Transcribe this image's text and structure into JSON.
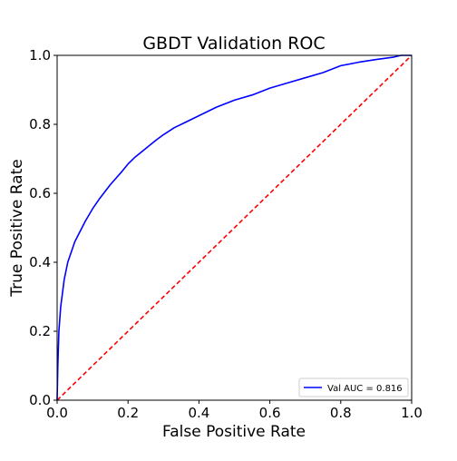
{
  "chart_data": {
    "type": "line",
    "title": "GBDT Validation ROC",
    "xlabel": "False Positive Rate",
    "ylabel": "True Positive Rate",
    "xlim": [
      0.0,
      1.0
    ],
    "ylim": [
      0.0,
      1.0
    ],
    "xticks": [
      "0.0",
      "0.2",
      "0.4",
      "0.6",
      "0.8",
      "1.0"
    ],
    "yticks": [
      "0.0",
      "0.2",
      "0.4",
      "0.6",
      "0.8",
      "1.0"
    ],
    "grid": false,
    "legend_position": "lower-right",
    "series": [
      {
        "name": "Val AUC = 0.816",
        "color": "#0000ff",
        "style": "solid",
        "x": [
          0.0,
          0.002,
          0.005,
          0.01,
          0.015,
          0.02,
          0.03,
          0.04,
          0.05,
          0.06,
          0.08,
          0.1,
          0.12,
          0.15,
          0.18,
          0.2,
          0.22,
          0.25,
          0.28,
          0.3,
          0.33,
          0.36,
          0.4,
          0.45,
          0.5,
          0.55,
          0.6,
          0.65,
          0.7,
          0.75,
          0.8,
          0.85,
          0.9,
          0.95,
          0.97,
          1.0
        ],
        "y": [
          0.0,
          0.1,
          0.2,
          0.27,
          0.31,
          0.35,
          0.4,
          0.43,
          0.46,
          0.48,
          0.52,
          0.555,
          0.585,
          0.625,
          0.66,
          0.685,
          0.705,
          0.73,
          0.755,
          0.77,
          0.79,
          0.805,
          0.825,
          0.85,
          0.87,
          0.885,
          0.905,
          0.92,
          0.935,
          0.95,
          0.97,
          0.98,
          0.988,
          0.995,
          1.0,
          1.0
        ]
      },
      {
        "color": "#ff0000",
        "style": "dashed",
        "x": [
          0.0,
          1.0
        ],
        "y": [
          0.0,
          1.0
        ]
      }
    ]
  }
}
